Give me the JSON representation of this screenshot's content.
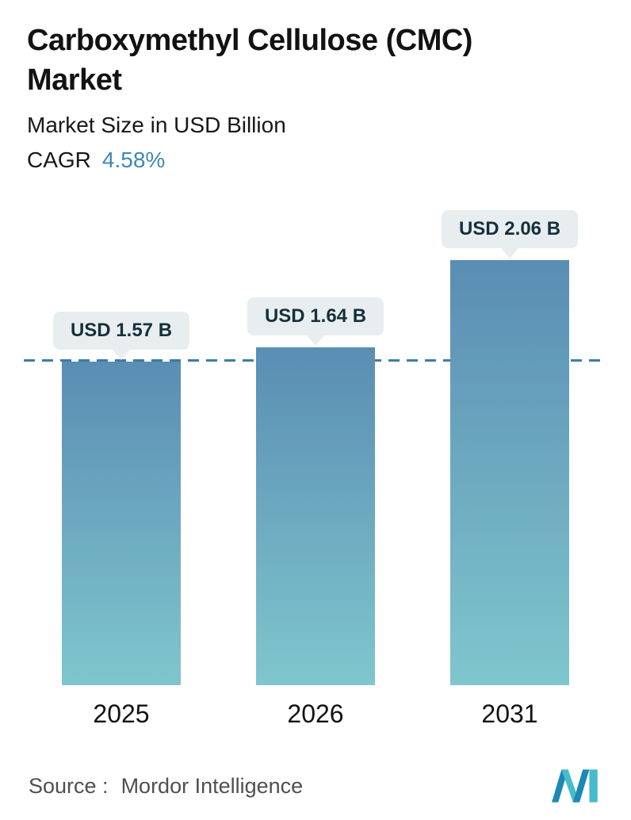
{
  "header": {
    "title": "Carboxymethyl Cellulose (CMC) Market",
    "subtitle": "Market Size in USD Billion",
    "cagr_label": "CAGR",
    "cagr_value": "4.58%",
    "accent_color": "#3f88b4"
  },
  "chart_data": {
    "type": "bar",
    "title": "Carboxymethyl Cellulose (CMC) Market",
    "subtitle": "Market Size in USD Billion",
    "unit": "USD Billion",
    "cagr_percent": 4.58,
    "categories": [
      "2025",
      "2026",
      "2031"
    ],
    "values": [
      1.57,
      1.64,
      2.06
    ],
    "value_labels": [
      "USD 1.57 B",
      "USD 1.64 B",
      "USD 2.06 B"
    ],
    "ylim": [
      0,
      2.2
    ],
    "grid": false,
    "legend": "none",
    "reference_line": {
      "value": 1.57,
      "style": "dashed",
      "color": "#3d7ca6"
    },
    "bar_gradient_top": "#5a8db3",
    "bar_gradient_bottom": "#7fc6cd",
    "label_badge_bg": "#e8eef0",
    "label_text_color": "#16303c"
  },
  "footer": {
    "source_label": "Source :",
    "source_value": "Mordor Intelligence",
    "logo_name": "mordor-intelligence-logo",
    "logo_colors": [
      "#1c89b4",
      "#45bccb"
    ]
  }
}
